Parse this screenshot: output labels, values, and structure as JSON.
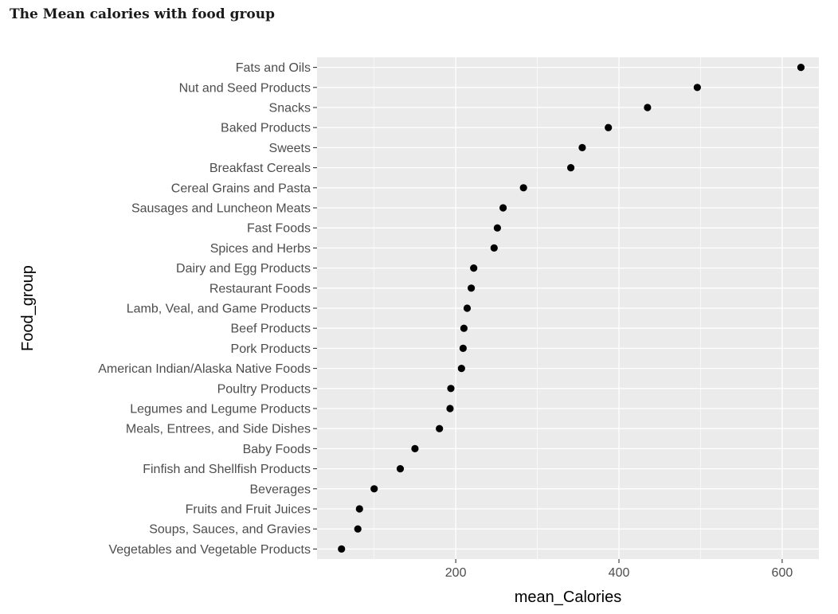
{
  "chart_data": {
    "type": "scatter",
    "title": "The Mean calories with food group",
    "xlabel": "mean_Calories",
    "ylabel": "Food_group",
    "xlim": [
      30,
      645
    ],
    "x_ticks": [
      200,
      400,
      600
    ],
    "grid": true,
    "categories": [
      "Fats and Oils",
      "Nut and Seed Products",
      "Snacks",
      "Baked Products",
      "Sweets",
      "Breakfast Cereals",
      "Cereal Grains and Pasta",
      "Sausages and Luncheon Meats",
      "Fast Foods",
      "Spices and Herbs",
      "Dairy and Egg Products",
      "Restaurant Foods",
      "Lamb, Veal, and Game Products",
      "Beef Products",
      "Pork Products",
      "American Indian/Alaska Native Foods",
      "Poultry Products",
      "Legumes and Legume Products",
      "Meals, Entrees, and Side Dishes",
      "Baby Foods",
      "Finfish and Shellfish Products",
      "Beverages",
      "Fruits and Fruit Juices",
      "Soups, Sauces, and Gravies",
      "Vegetables and Vegetable Products"
    ],
    "values": [
      623,
      496,
      435,
      387,
      355,
      341,
      283,
      258,
      251,
      247,
      222,
      219,
      214,
      210,
      209,
      207,
      194,
      193,
      180,
      150,
      132,
      100,
      82,
      80,
      60
    ],
    "colors": {
      "panel": "#ebebeb",
      "grid_major": "#ffffff",
      "point": "#000000"
    }
  }
}
